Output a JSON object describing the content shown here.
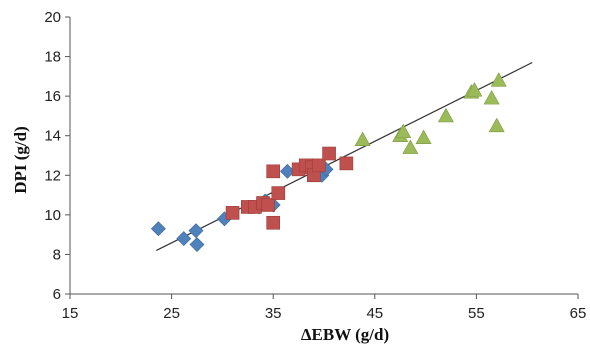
{
  "chart_data": {
    "type": "scatter",
    "title": "",
    "xlabel": "ΔEBW (g/d)",
    "ylabel": "DPI (g/d)",
    "xlim": [
      15,
      65
    ],
    "ylim": [
      6,
      20
    ],
    "xticks": [
      15,
      25,
      35,
      45,
      55,
      65
    ],
    "yticks": [
      6,
      8,
      10,
      12,
      14,
      16,
      18,
      20
    ],
    "grid": false,
    "legend": "none",
    "series": [
      {
        "marker": "diamond",
        "color": "#4F81BD",
        "points": [
          [
            23.7,
            9.3
          ],
          [
            26.2,
            8.8
          ],
          [
            27.4,
            9.2
          ],
          [
            27.5,
            8.5
          ],
          [
            30.2,
            9.8
          ],
          [
            33.6,
            10.4
          ],
          [
            34.2,
            10.7
          ],
          [
            35.0,
            10.5
          ],
          [
            36.4,
            12.2
          ],
          [
            39.8,
            12.0
          ],
          [
            40.2,
            12.3
          ]
        ]
      },
      {
        "marker": "square",
        "color": "#C0504D",
        "points": [
          [
            31.0,
            10.1
          ],
          [
            32.5,
            10.4
          ],
          [
            33.2,
            10.4
          ],
          [
            34.0,
            10.6
          ],
          [
            34.5,
            10.5
          ],
          [
            35.0,
            12.2
          ],
          [
            35.0,
            9.6
          ],
          [
            35.5,
            11.1
          ],
          [
            37.5,
            12.3
          ],
          [
            38.2,
            12.5
          ],
          [
            38.8,
            12.4
          ],
          [
            39.0,
            12.0
          ],
          [
            39.5,
            12.5
          ],
          [
            40.5,
            13.1
          ],
          [
            42.2,
            12.6
          ]
        ]
      },
      {
        "marker": "triangle",
        "color": "#9BBB59",
        "points": [
          [
            43.8,
            13.8
          ],
          [
            47.5,
            14.0
          ],
          [
            47.8,
            14.2
          ],
          [
            48.5,
            13.4
          ],
          [
            49.8,
            13.9
          ],
          [
            52.0,
            15.0
          ],
          [
            54.5,
            16.2
          ],
          [
            54.8,
            16.3
          ],
          [
            56.5,
            15.9
          ],
          [
            57.0,
            14.5
          ],
          [
            57.2,
            16.8
          ]
        ]
      }
    ],
    "trendline": {
      "color": "#333333",
      "from": [
        23.5,
        8.2
      ],
      "to": [
        60.5,
        17.7
      ]
    }
  },
  "colors": {
    "axis": "#555555",
    "background": "#ffffff"
  }
}
